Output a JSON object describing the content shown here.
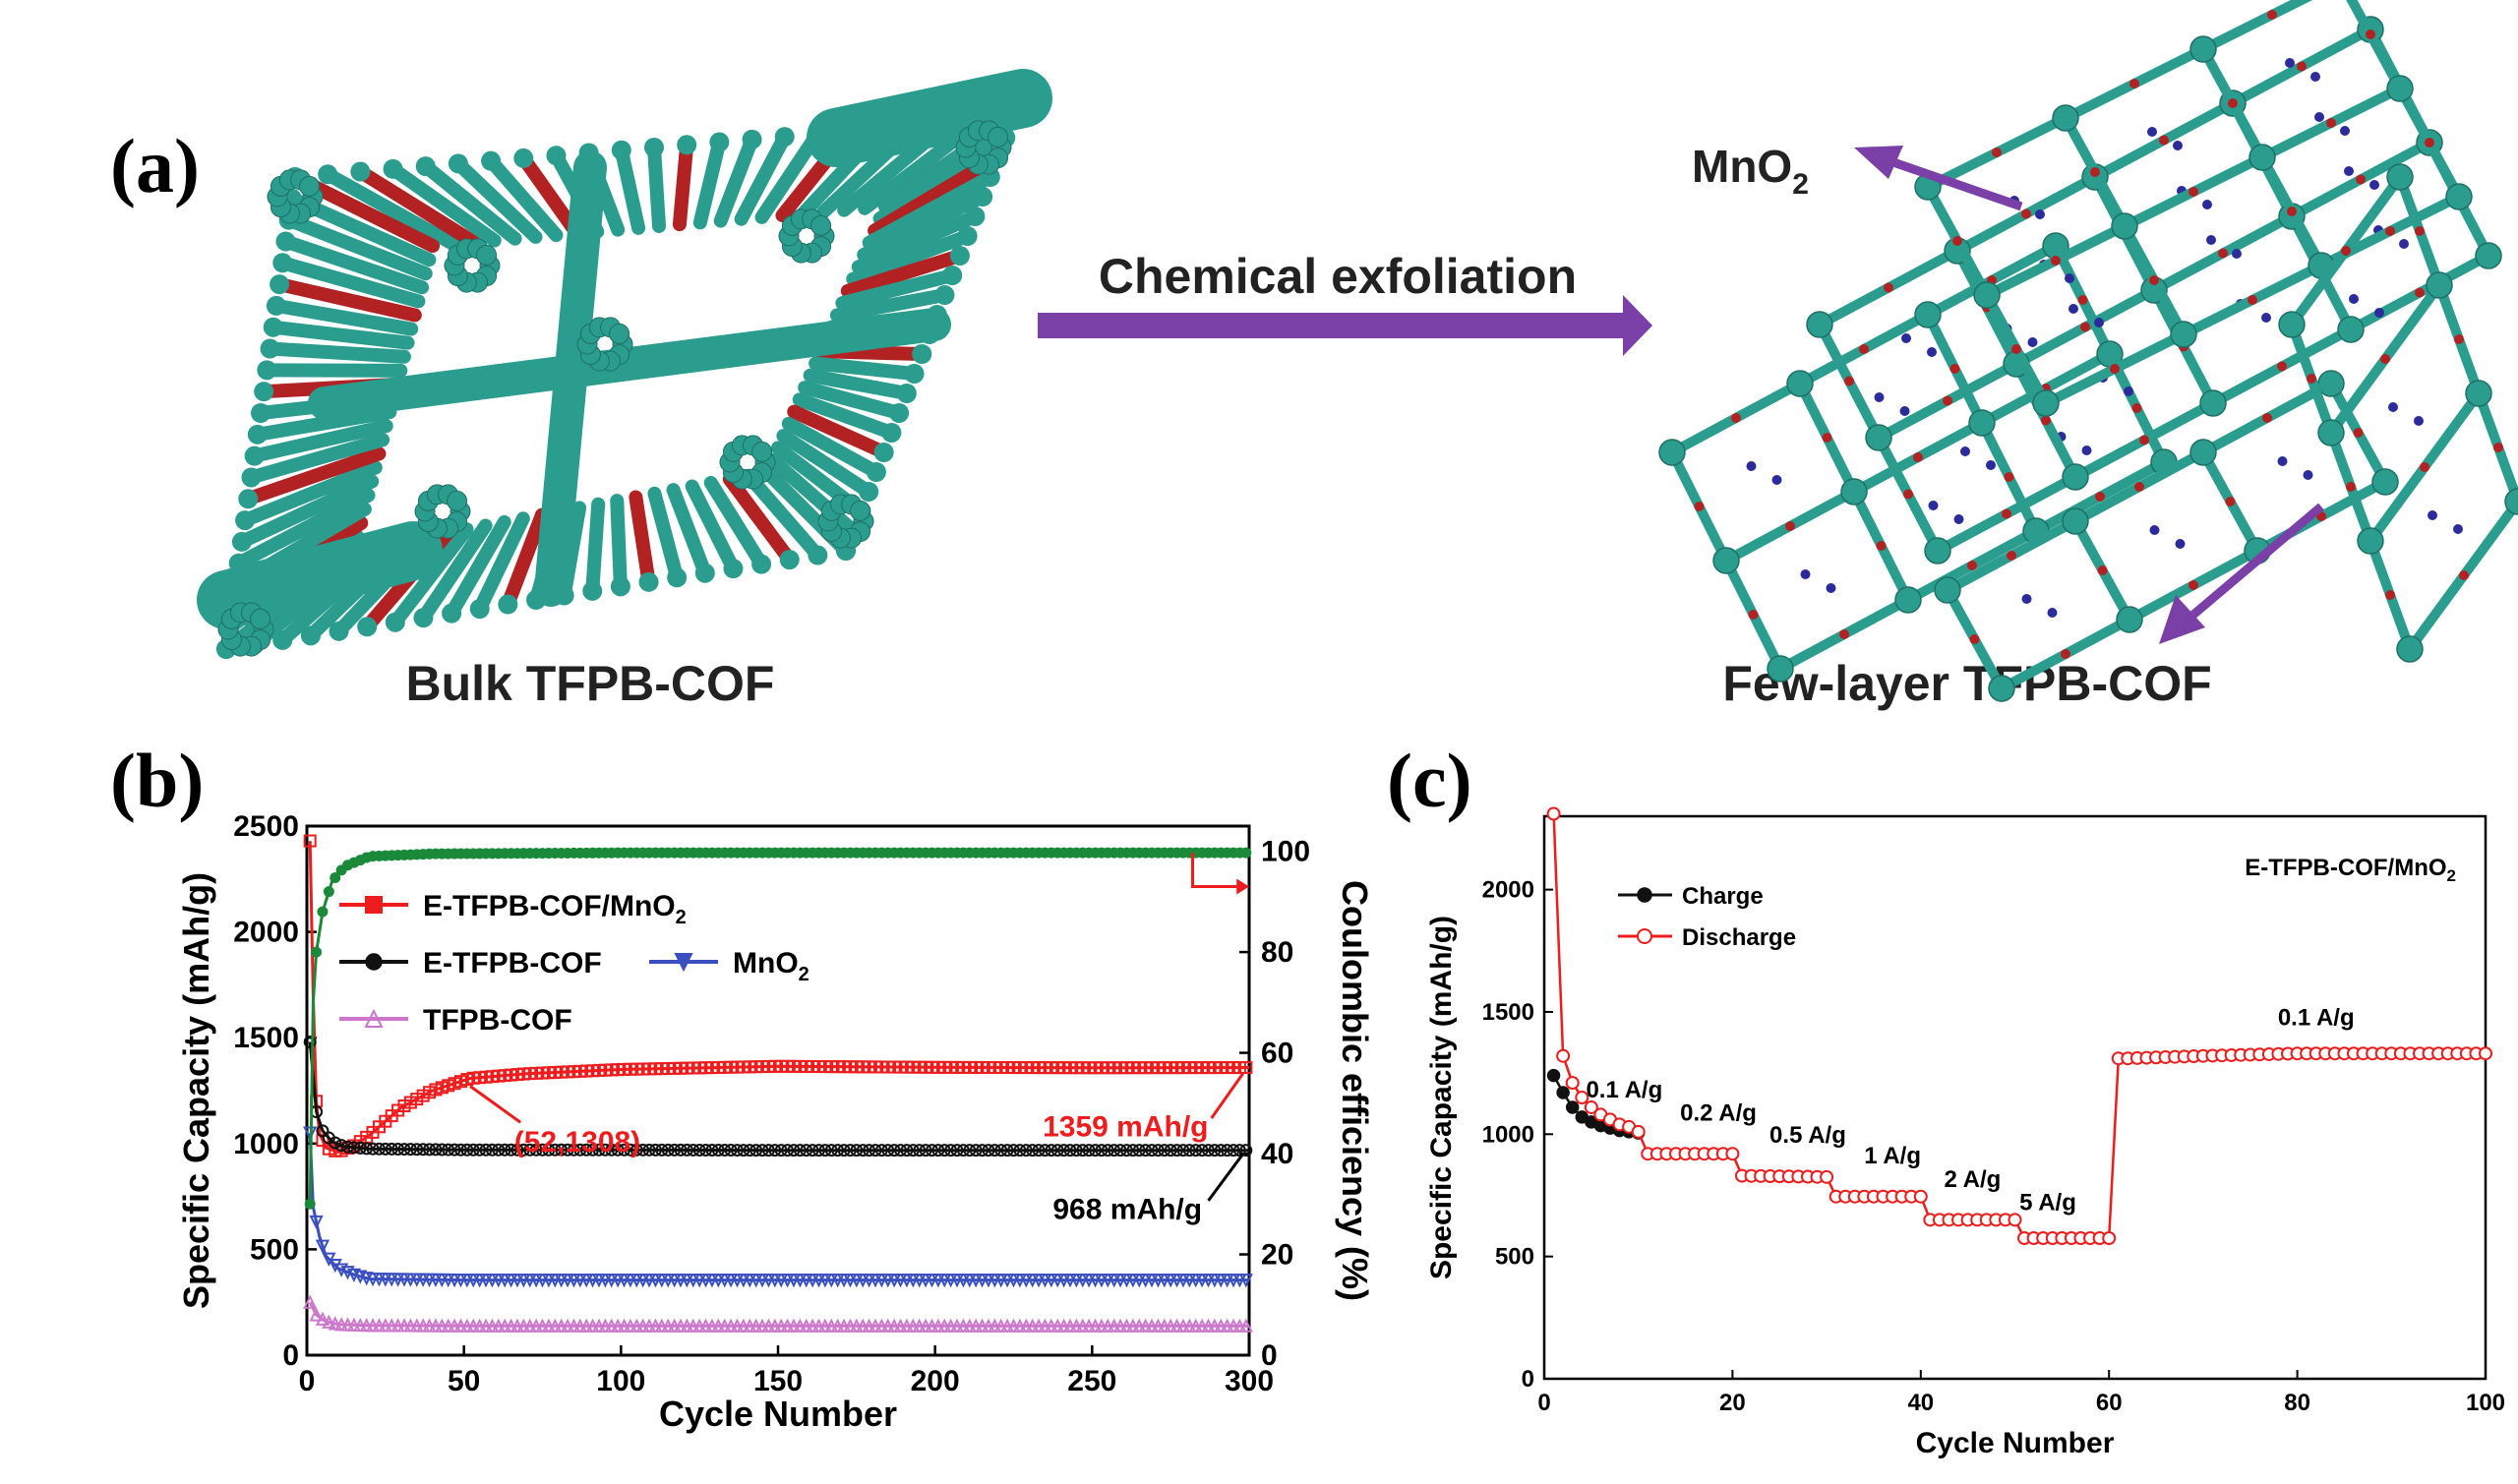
{
  "panel_a": {
    "letter": "(a)",
    "arrow_label": "Chemical exfoliation",
    "left_caption": "Bulk TFPB-COF",
    "right_caption": "Few-layer TFPB-COF",
    "mno2_label": "MnO2",
    "colors": {
      "framework": "#2a9d8f",
      "linker": "#b22222",
      "mno2": "#2b2b9c",
      "arrow": "#7b3fa8"
    }
  },
  "panel_b": {
    "letter": "(b)"
  },
  "panel_c": {
    "letter": "(c)"
  },
  "chart_data": [
    {
      "type": "line",
      "panel": "b",
      "xlabel": "Cycle Number",
      "ylabel": "Specific Capacity (mAh/g)",
      "y2label": "Coulombic efficiency (%)",
      "xlim": [
        0,
        300
      ],
      "ylim": [
        0,
        2500
      ],
      "y2lim": [
        0,
        105
      ],
      "xticks": [
        0,
        50,
        100,
        150,
        200,
        250,
        300
      ],
      "yticks": [
        0,
        500,
        1000,
        1500,
        2000,
        2500
      ],
      "y2ticks": [
        0,
        20,
        40,
        60,
        80,
        100
      ],
      "series": [
        {
          "name": "E-TFPB-COF/MnO2",
          "color": "#ee1c1c",
          "marker": "square",
          "points": [
            [
              1,
              2430
            ],
            [
              2,
              1700
            ],
            [
              3,
              1200
            ],
            [
              4,
              1050
            ],
            [
              6,
              980
            ],
            [
              10,
              960
            ],
            [
              15,
              990
            ],
            [
              20,
              1040
            ],
            [
              30,
              1170
            ],
            [
              40,
              1250
            ],
            [
              52,
              1308
            ],
            [
              70,
              1330
            ],
            [
              100,
              1350
            ],
            [
              150,
              1365
            ],
            [
              200,
              1360
            ],
            [
              250,
              1358
            ],
            [
              300,
              1359
            ]
          ]
        },
        {
          "name": "E-TFPB-COF",
          "color": "#111111",
          "marker": "circle",
          "points": [
            [
              1,
              1480
            ],
            [
              3,
              1150
            ],
            [
              5,
              1060
            ],
            [
              8,
              1010
            ],
            [
              12,
              985
            ],
            [
              20,
              975
            ],
            [
              50,
              970
            ],
            [
              100,
              970
            ],
            [
              150,
              968
            ],
            [
              200,
              968
            ],
            [
              250,
              968
            ],
            [
              300,
              968
            ]
          ]
        },
        {
          "name": "MnO2",
          "color": "#3a4fbf",
          "marker": "triangle-down",
          "points": [
            [
              1,
              1050
            ],
            [
              2,
              700
            ],
            [
              4,
              560
            ],
            [
              6,
              470
            ],
            [
              10,
              410
            ],
            [
              15,
              380
            ],
            [
              20,
              360
            ],
            [
              50,
              355
            ],
            [
              100,
              355
            ],
            [
              150,
              355
            ],
            [
              200,
              355
            ],
            [
              250,
              355
            ],
            [
              300,
              355
            ]
          ]
        },
        {
          "name": "TFPB-COF",
          "color": "#cc77cc",
          "marker": "triangle-up",
          "points": [
            [
              1,
              250
            ],
            [
              3,
              190
            ],
            [
              6,
              160
            ],
            [
              10,
              145
            ],
            [
              20,
              140
            ],
            [
              50,
              138
            ],
            [
              100,
              138
            ],
            [
              150,
              138
            ],
            [
              200,
              138
            ],
            [
              250,
              138
            ],
            [
              300,
              138
            ]
          ]
        },
        {
          "name": "",
          "color": "#1a8a3a",
          "marker": "circle",
          "axis": "right",
          "points": [
            [
              1,
              30
            ],
            [
              2,
              70
            ],
            [
              3,
              80
            ],
            [
              5,
              88
            ],
            [
              8,
              94
            ],
            [
              12,
              97
            ],
            [
              20,
              99
            ],
            [
              40,
              99.5
            ],
            [
              100,
              99.7
            ],
            [
              200,
              99.7
            ],
            [
              300,
              99.7
            ]
          ]
        }
      ],
      "annotations": [
        {
          "text": "(52,1308)",
          "color": "#ee1c1c"
        },
        {
          "text": "1359 mAh/g",
          "color": "#ee1c1c"
        },
        {
          "text": "968 mAh/g",
          "color": "#000000"
        }
      ],
      "legend": {
        "placement": "upper-left",
        "mno2_label": "MnO2"
      }
    },
    {
      "type": "line",
      "panel": "c",
      "title": "E-TFPB-COF/MnO2",
      "xlabel": "Cycle Number",
      "ylabel": "Specific Capacity (mAh/g)",
      "xlim": [
        0,
        100
      ],
      "ylim": [
        0,
        2300
      ],
      "xticks": [
        0,
        20,
        40,
        60,
        80,
        100
      ],
      "yticks": [
        0,
        500,
        1000,
        1500,
        2000
      ],
      "series": [
        {
          "name": "Charge",
          "color": "#111111",
          "marker": "circle-filled",
          "points": [
            [
              1,
              1240
            ],
            [
              2,
              1170
            ],
            [
              3,
              1110
            ],
            [
              4,
              1070
            ],
            [
              5,
              1050
            ],
            [
              6,
              1035
            ],
            [
              7,
              1025
            ],
            [
              8,
              1015
            ],
            [
              9,
              1010
            ],
            [
              10,
              1005
            ]
          ]
        },
        {
          "name": "Discharge",
          "color": "#ee1c1c",
          "marker": "circle-open",
          "points": [
            [
              1,
              2310
            ],
            [
              2,
              1320
            ],
            [
              3,
              1210
            ],
            [
              4,
              1150
            ],
            [
              5,
              1110
            ],
            [
              6,
              1080
            ],
            [
              7,
              1060
            ],
            [
              8,
              1040
            ],
            [
              9,
              1030
            ],
            [
              10,
              1010
            ],
            [
              11,
              920
            ],
            [
              20,
              920
            ],
            [
              21,
              830
            ],
            [
              30,
              825
            ],
            [
              31,
              745
            ],
            [
              40,
              745
            ],
            [
              41,
              650
            ],
            [
              50,
              650
            ],
            [
              51,
              575
            ],
            [
              60,
              575
            ],
            [
              61,
              1310
            ],
            [
              62,
              1310
            ],
            [
              70,
              1320
            ],
            [
              80,
              1330
            ],
            [
              90,
              1330
            ],
            [
              100,
              1330
            ]
          ]
        }
      ],
      "rate_labels": [
        "0.1 A/g",
        "0.2 A/g",
        "0.5 A/g",
        "1 A/g",
        "2 A/g",
        "5 A/g",
        "0.1 A/g"
      ],
      "legend": {
        "placement": "upper-left"
      }
    }
  ]
}
